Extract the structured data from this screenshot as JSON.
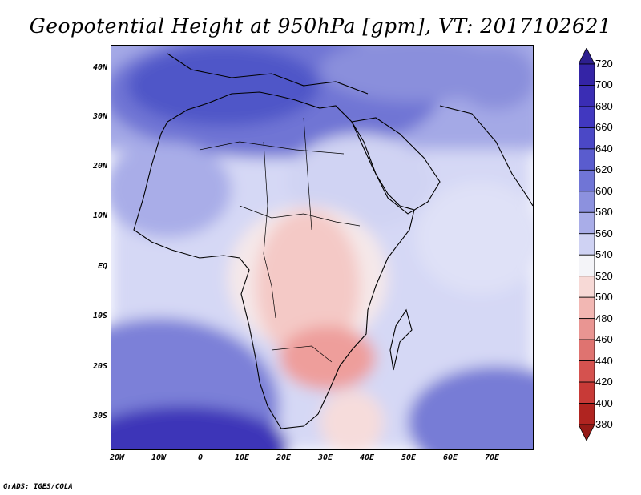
{
  "title": "Geopotential Height at 950hPa [gpm], VT: 2017102621",
  "credit": "GrADS: IGES/COLA",
  "map": {
    "lon_range": [
      -20,
      80
    ],
    "lat_range": [
      -38,
      45
    ],
    "lat_labels": [
      "40N",
      "30N",
      "20N",
      "10N",
      "EQ",
      "10S",
      "20S",
      "30S"
    ],
    "lon_labels": [
      "20W",
      "10W",
      "0",
      "10E",
      "20E",
      "30E",
      "40E",
      "50E",
      "60E",
      "70E"
    ]
  },
  "colorbar": {
    "labels": [
      "720",
      "700",
      "680",
      "660",
      "640",
      "620",
      "600",
      "580",
      "560",
      "540",
      "520",
      "500",
      "480",
      "460",
      "440",
      "420",
      "400",
      "380"
    ],
    "colors": [
      "#2d1f8f",
      "#3424a6",
      "#3a2db4",
      "#4138c0",
      "#4b48c6",
      "#5a5cce",
      "#7075d6",
      "#8c91de",
      "#a9ade8",
      "#cfd2f3",
      "#f4f4f8",
      "#f7d9d6",
      "#f2b7b3",
      "#e99592",
      "#df7370",
      "#d5524f",
      "#c83a37",
      "#b02420",
      "#951a16"
    ]
  }
}
